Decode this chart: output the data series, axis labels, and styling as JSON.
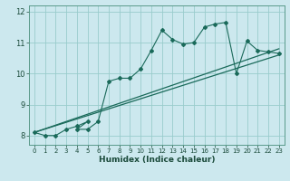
{
  "xlabel": "Humidex (Indice chaleur)",
  "ylabel": "",
  "bg_color": "#cce8ee",
  "grid_color": "#99cccc",
  "line_color": "#1a6a5a",
  "xlim": [
    -0.5,
    23.5
  ],
  "ylim": [
    7.7,
    12.2
  ],
  "xticks": [
    0,
    1,
    2,
    3,
    4,
    5,
    6,
    7,
    8,
    9,
    10,
    11,
    12,
    13,
    14,
    15,
    16,
    17,
    18,
    19,
    20,
    21,
    22,
    23
  ],
  "yticks": [
    8,
    9,
    10,
    11,
    12
  ],
  "data_x": [
    0,
    1,
    2,
    3,
    4,
    5,
    4,
    5,
    6,
    7,
    8,
    9,
    10,
    11,
    12,
    13,
    14,
    15,
    16,
    17,
    18,
    19,
    20,
    21,
    22,
    23
  ],
  "data_y": [
    8.1,
    8.0,
    8.0,
    8.2,
    8.3,
    8.45,
    8.2,
    8.2,
    8.45,
    9.75,
    9.85,
    9.85,
    10.15,
    10.75,
    11.4,
    11.1,
    10.95,
    11.0,
    11.5,
    11.6,
    11.65,
    10.0,
    11.05,
    10.75,
    10.7,
    10.65
  ],
  "line1_x": [
    0,
    23
  ],
  "line1_y": [
    8.1,
    10.8
  ],
  "line2_x": [
    0,
    23
  ],
  "line2_y": [
    8.1,
    10.6
  ]
}
